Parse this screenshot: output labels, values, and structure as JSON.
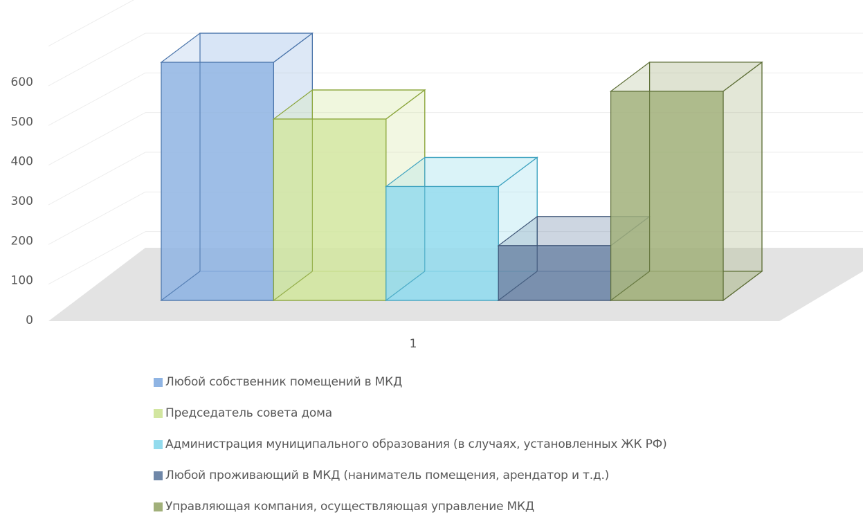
{
  "chart_data": {
    "type": "bar",
    "style": "3d-clustered-column",
    "categories": [
      "1"
    ],
    "yticks": [
      "0",
      "100",
      "200",
      "300",
      "400",
      "500",
      "600"
    ],
    "ylim": [
      0,
      700
    ],
    "grid": true,
    "legend_position": "bottom",
    "series": [
      {
        "name": "Любой собственник помещений в МКД",
        "values": [
          600
        ],
        "color": "#8fb4e3",
        "edge": "#4a74aa"
      },
      {
        "name": "Председатель совета дома",
        "values": [
          457
        ],
        "color": "#d2e6a0",
        "edge": "#8aa53a"
      },
      {
        "name": "Администрация муниципального образования (в случаях, установленных ЖК РФ)",
        "values": [
          287
        ],
        "color": "#93dbed",
        "edge": "#3fa3c0"
      },
      {
        "name": "Любой проживающий в МКД (наниматель помещения, арендатор и т.д.)",
        "values": [
          138
        ],
        "color": "#6f87a8",
        "edge": "#3e5577"
      },
      {
        "name": "Управляющая компания, осуществляющая управление МКД",
        "values": [
          527
        ],
        "color": "#a1b07a",
        "edge": "#5d6e36"
      }
    ]
  }
}
